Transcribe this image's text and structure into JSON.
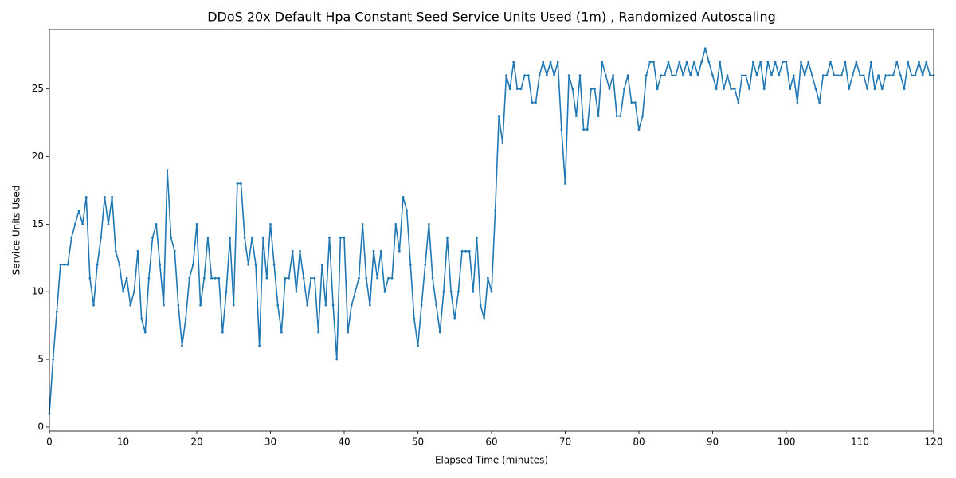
{
  "chart_data": {
    "type": "line",
    "title": "DDoS 20x Default Hpa Constant Seed Service Units Used (1m) , Randomized Autoscaling",
    "x_label": "Elapsed Time (minutes)",
    "y_label": "Service Units Used",
    "xlim": [
      0,
      120
    ],
    "ylim": [
      -0.3,
      29.4
    ],
    "xticks": [
      0,
      10,
      20,
      30,
      40,
      50,
      60,
      70,
      80,
      90,
      100,
      110,
      120
    ],
    "yticks": [
      0,
      5,
      10,
      15,
      20,
      25
    ],
    "grid": false,
    "x": [
      0,
      0.5,
      1,
      1.5,
      2,
      2.5,
      3,
      3.5,
      4,
      4.5,
      5,
      5.5,
      6,
      6.5,
      7,
      7.5,
      8,
      8.5,
      9,
      9.5,
      10,
      10.5,
      11,
      11.5,
      12,
      12.5,
      13,
      13.5,
      14,
      14.5,
      15,
      15.5,
      16,
      16.5,
      17,
      17.5,
      18,
      18.5,
      19,
      19.5,
      20,
      20.5,
      21,
      21.5,
      22,
      22.5,
      23,
      23.5,
      24,
      24.5,
      25,
      25.5,
      26,
      26.5,
      27,
      27.5,
      28,
      28.5,
      29,
      29.5,
      30,
      30.5,
      31,
      31.5,
      32,
      32.5,
      33,
      33.5,
      34,
      34.5,
      35,
      35.5,
      36,
      36.5,
      37,
      37.5,
      38,
      38.5,
      39,
      39.5,
      40,
      40.5,
      41,
      41.5,
      42,
      42.5,
      43,
      43.5,
      44,
      44.5,
      45,
      45.5,
      46,
      46.5,
      47,
      47.5,
      48,
      48.5,
      49,
      49.5,
      50,
      50.5,
      51,
      51.5,
      52,
      52.5,
      53,
      53.5,
      54,
      54.5,
      55,
      55.5,
      56,
      56.5,
      57,
      57.5,
      58,
      58.5,
      59,
      59.5,
      60,
      60.5,
      61,
      61.5,
      62,
      62.5,
      63,
      63.5,
      64,
      64.5,
      65,
      65.5,
      66,
      66.5,
      67,
      67.5,
      68,
      68.5,
      69,
      69.5,
      70,
      70.5,
      71,
      71.5,
      72,
      72.5,
      73,
      73.5,
      74,
      74.5,
      75,
      75.5,
      76,
      76.5,
      77,
      77.5,
      78,
      78.5,
      79,
      79.5,
      80,
      80.5,
      81,
      81.5,
      82,
      82.5,
      83,
      83.5,
      84,
      84.5,
      85,
      85.5,
      86,
      86.5,
      87,
      87.5,
      88,
      88.5,
      89,
      89.5,
      90,
      90.5,
      91,
      91.5,
      92,
      92.5,
      93,
      93.5,
      94,
      94.5,
      95,
      95.5,
      96,
      96.5,
      97,
      97.5,
      98,
      98.5,
      99,
      99.5,
      100,
      100.5,
      101,
      101.5,
      102,
      102.5,
      103,
      103.5,
      104,
      104.5,
      105,
      105.5,
      106,
      106.5,
      107,
      107.5,
      108,
      108.5,
      109,
      109.5,
      110,
      110.5,
      111,
      111.5,
      112,
      112.5,
      113,
      113.5,
      114,
      114.5,
      115,
      115.5,
      116,
      116.5,
      117,
      117.5,
      118,
      118.5,
      119,
      119.5,
      120
    ],
    "series": [
      {
        "name": "Service Units Used",
        "color": "#1f77b4",
        "values": [
          1,
          5,
          8.5,
          12,
          12,
          12,
          14,
          15,
          16,
          15,
          17,
          11,
          9,
          12,
          14,
          17,
          15,
          17,
          13,
          12,
          10,
          11,
          9,
          10,
          13,
          8,
          7,
          11,
          14,
          15,
          12,
          9,
          19,
          14,
          13,
          9,
          6,
          8,
          11,
          12,
          15,
          9,
          11,
          14,
          11,
          11,
          11,
          7,
          10,
          14,
          9,
          18,
          18,
          14,
          12,
          14,
          12,
          6,
          14,
          11,
          15,
          12,
          9,
          7,
          11,
          11,
          13,
          10,
          13,
          11,
          9,
          11,
          11,
          7,
          12,
          9,
          14,
          9,
          5,
          14,
          14,
          7,
          9,
          10,
          11,
          15,
          11,
          9,
          13,
          11,
          13,
          10,
          11,
          11,
          15,
          13,
          17,
          16,
          12,
          8,
          6,
          9,
          12,
          15,
          11,
          9,
          7,
          10,
          14,
          10,
          8,
          10,
          13,
          13,
          13,
          10,
          14,
          9,
          8,
          11,
          10,
          16,
          23,
          21,
          26,
          25,
          27,
          25,
          25,
          26,
          26,
          24,
          24,
          26,
          27,
          26,
          27,
          26,
          27,
          22,
          18,
          26,
          25,
          23,
          26,
          22,
          22,
          25,
          25,
          23,
          27,
          26,
          25,
          26,
          23,
          23,
          25,
          26,
          24,
          24,
          22,
          23,
          26,
          27,
          27,
          25,
          26,
          26,
          27,
          26,
          26,
          27,
          26,
          27,
          26,
          27,
          26,
          27,
          28,
          27,
          26,
          25,
          27,
          25,
          26,
          25,
          25,
          24,
          26,
          26,
          25,
          27,
          26,
          27,
          25,
          27,
          26,
          27,
          26,
          27,
          27,
          25,
          26,
          24,
          27,
          26,
          27,
          26,
          25,
          24,
          26,
          26,
          27,
          26,
          26,
          26,
          27,
          25,
          26,
          27,
          26,
          26,
          25,
          27,
          25,
          26,
          25,
          26,
          26,
          26,
          27,
          26,
          25,
          27,
          26,
          26,
          27,
          26,
          27,
          26,
          26
        ]
      }
    ]
  }
}
